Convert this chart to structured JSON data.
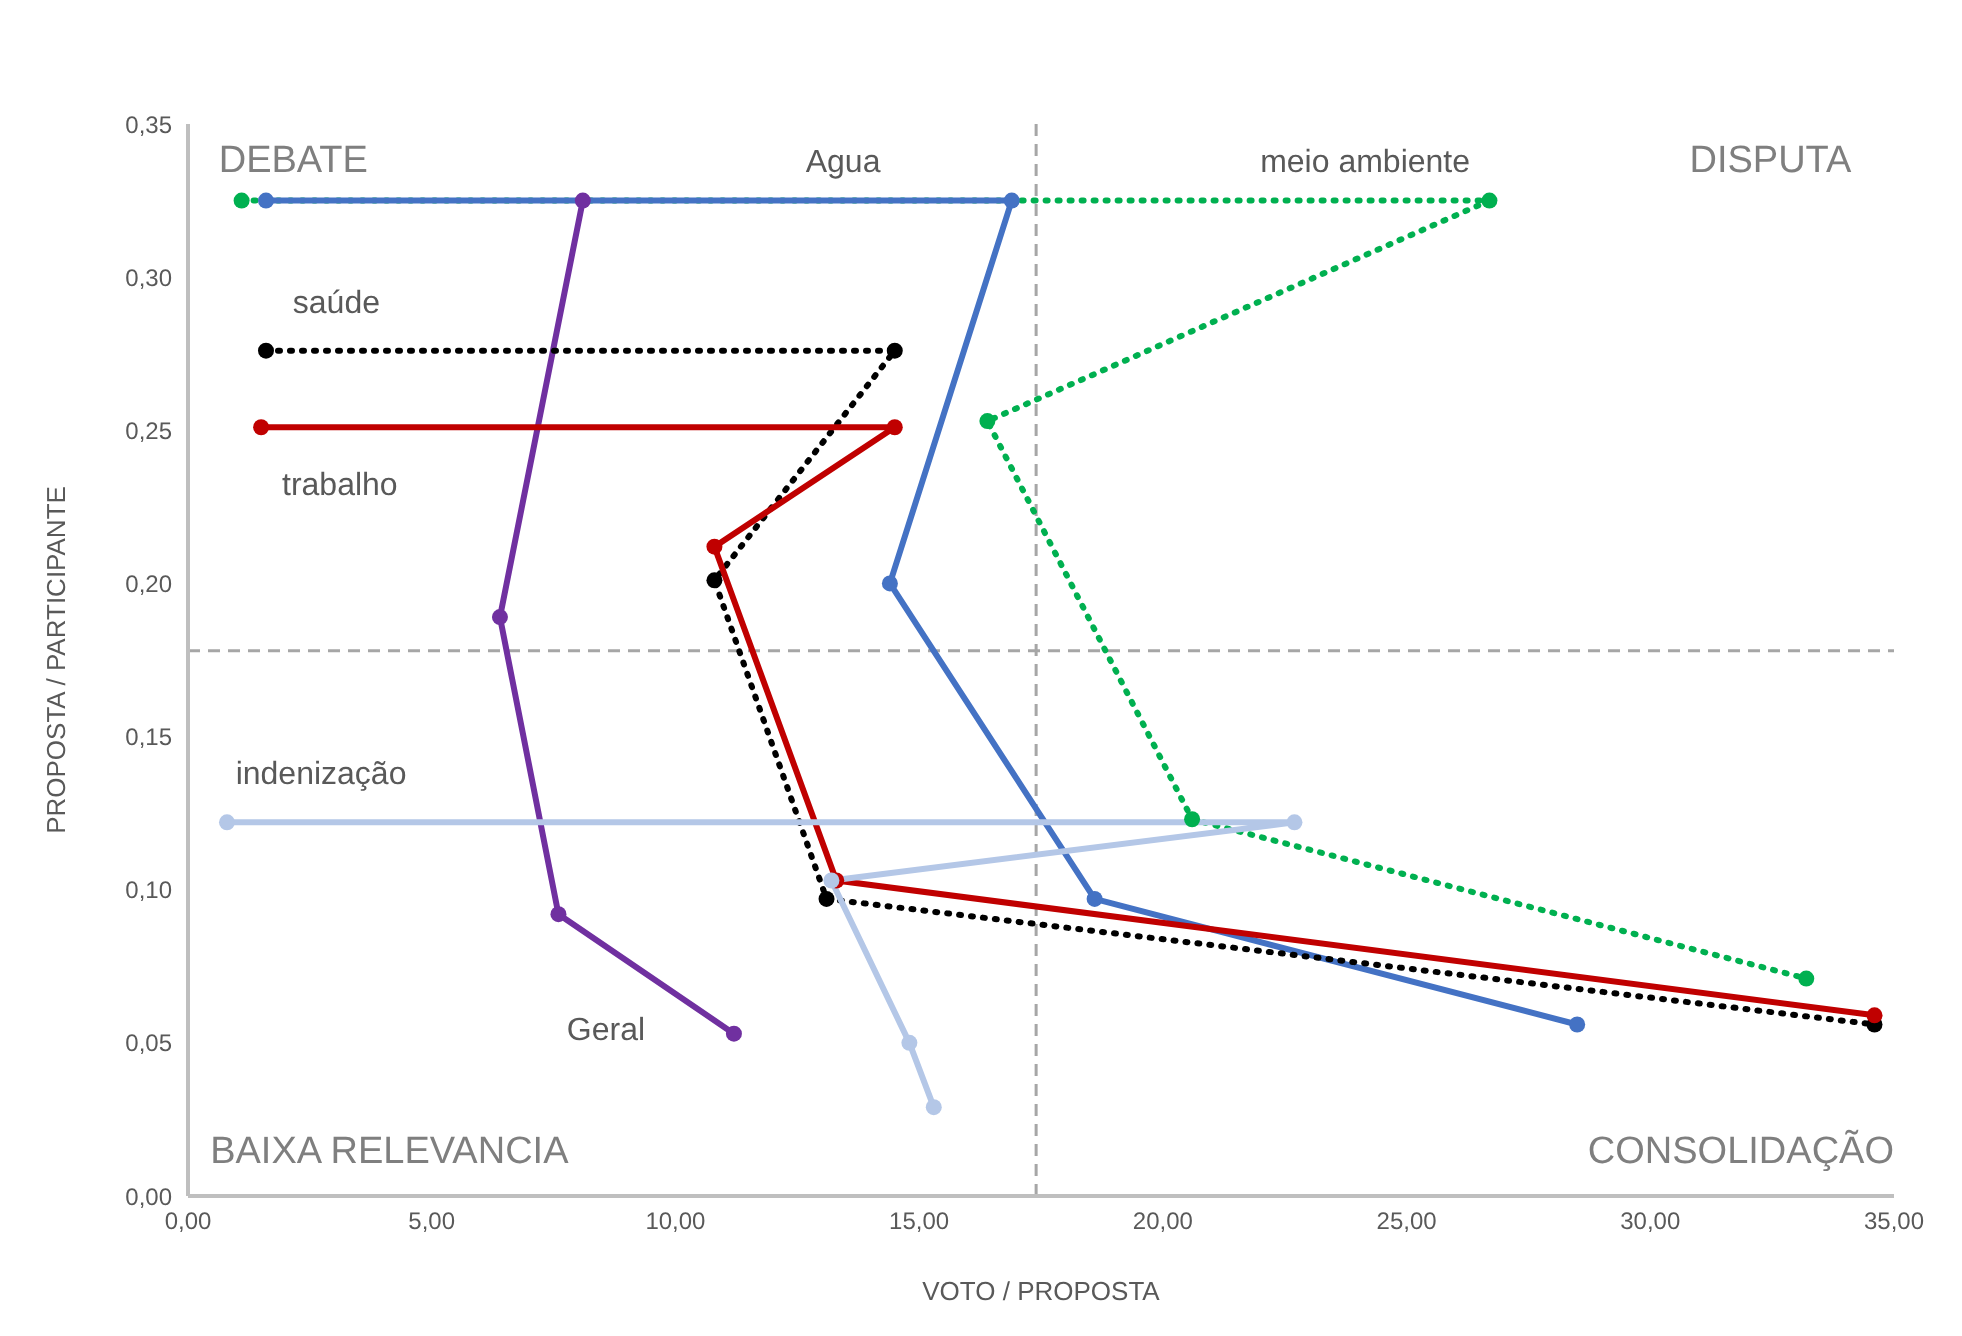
{
  "chart_data": {
    "type": "line",
    "xlabel": "VOTO / PROPOSTA",
    "ylabel": "PROPOSTA / PARTICIPANTE",
    "xlim": [
      0,
      35
    ],
    "xticks": [
      {
        "value": 0,
        "label": "0,00"
      },
      {
        "value": 5,
        "label": "5,00"
      },
      {
        "value": 10,
        "label": "10,00"
      },
      {
        "value": 15,
        "label": "15,00"
      },
      {
        "value": 20,
        "label": "20,00"
      },
      {
        "value": 25,
        "label": "25,00"
      },
      {
        "value": 30,
        "label": "30,00"
      },
      {
        "value": 35,
        "label": "35,00"
      }
    ],
    "ylim": [
      0,
      0.35
    ],
    "yticks": [
      {
        "value": 0,
        "label": "0,00"
      },
      {
        "value": 0.05,
        "label": "0,05"
      },
      {
        "value": 0.1,
        "label": "0,10"
      },
      {
        "value": 0.15,
        "label": "0,15"
      },
      {
        "value": 0.2,
        "label": "0,20"
      },
      {
        "value": 0.25,
        "label": "0,25"
      },
      {
        "value": 0.3,
        "label": "0,30"
      },
      {
        "value": 0.35,
        "label": "0,35"
      }
    ],
    "grid": false,
    "legend": false,
    "marker": "circle",
    "ref_lines": [
      {
        "axis": "x",
        "value": 17.4,
        "color": "#a6a6a6",
        "line_style": "dashed"
      },
      {
        "axis": "y",
        "value": 0.178,
        "color": "#a6a6a6",
        "line_style": "dashed"
      }
    ],
    "annotations": [
      "DEBATE",
      "DISPUTA",
      "BAIXA RELEVANCIA",
      "CONSOLIDAÇÃO"
    ],
    "series": [
      {
        "name": "meio ambiente",
        "color": "#00b050",
        "line_style": "dotted",
        "x": [
          1.1,
          26.7,
          16.4,
          20.6,
          33.2
        ],
        "values": [
          0.325,
          0.325,
          0.253,
          0.123,
          0.071
        ]
      },
      {
        "name": "Agua",
        "color": "#4472c4",
        "line_style": "solid",
        "x": [
          1.6,
          16.9,
          14.4,
          18.6,
          28.5
        ],
        "values": [
          0.325,
          0.325,
          0.2,
          0.097,
          0.056
        ]
      },
      {
        "name": "Geral",
        "color": "#7030a0",
        "line_style": "solid",
        "x": [
          8.1,
          6.4,
          7.6,
          11.2
        ],
        "values": [
          0.325,
          0.189,
          0.092,
          0.053
        ]
      },
      {
        "name": "saúde",
        "color": "#000000",
        "line_style": "dotted",
        "x": [
          1.6,
          14.5,
          10.8,
          13.1,
          34.6
        ],
        "values": [
          0.276,
          0.276,
          0.201,
          0.097,
          0.056
        ]
      },
      {
        "name": "trabalho",
        "color": "#c00000",
        "line_style": "solid",
        "x": [
          1.5,
          14.5,
          10.8,
          13.3,
          34.6
        ],
        "values": [
          0.251,
          0.251,
          0.212,
          0.103,
          0.059
        ]
      },
      {
        "name": "indenização",
        "color": "#b4c7e7",
        "line_style": "solid",
        "x": [
          0.8,
          22.7,
          13.2,
          14.8,
          15.3
        ],
        "values": [
          0.122,
          0.122,
          0.103,
          0.05,
          0.029
        ]
      }
    ]
  }
}
